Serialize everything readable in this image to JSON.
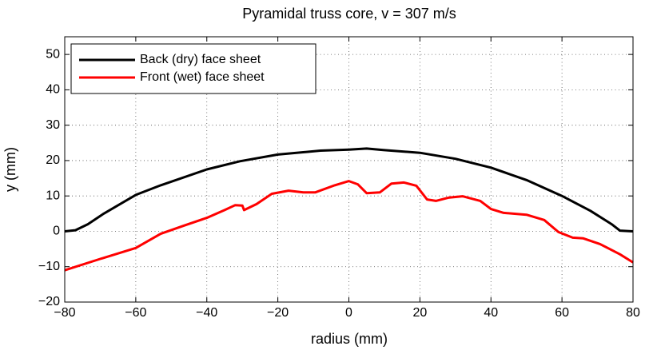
{
  "chart_data": {
    "type": "line",
    "title": "Pyramidal truss core, v = 307 m/s",
    "xlabel": "radius (mm)",
    "ylabel": "y (mm)",
    "xlim": [
      -80,
      80
    ],
    "xticks": [
      {
        "value": -80,
        "label": "−80"
      },
      {
        "value": -60,
        "label": "−60"
      },
      {
        "value": -40,
        "label": "−40"
      },
      {
        "value": -20,
        "label": "−20"
      },
      0,
      20,
      40,
      60,
      80
    ],
    "ylim": [
      -20,
      55
    ],
    "yticks": [
      {
        "value": -20,
        "label": "−20"
      },
      {
        "value": -10,
        "label": "−10"
      },
      0,
      10,
      20,
      30,
      40,
      50
    ],
    "grid": true,
    "legend": "upper left",
    "series": [
      {
        "name": "Back (dry) face sheet",
        "color": "#000000",
        "x": [
          -80,
          -77,
          -73.5,
          -69,
          -60,
          -53,
          -40,
          -30.7,
          -20,
          -8,
          0,
          5,
          9.7,
          20,
          30,
          40,
          50,
          60,
          68,
          74,
          76.3,
          80
        ],
        "values": [
          0,
          0.3,
          2,
          5,
          10.3,
          13,
          17.5,
          19.8,
          21.7,
          22.8,
          23.1,
          23.4,
          23,
          22.2,
          20.5,
          18,
          14.5,
          10,
          5.8,
          2,
          0.2,
          0
        ]
      },
      {
        "name": "Front (wet) face sheet",
        "color": "#ff0000",
        "x": [
          -80,
          -70,
          -60,
          -53,
          -46.5,
          -40,
          -35,
          -32,
          -30,
          -29.5,
          -26,
          -21.7,
          -17,
          -12.8,
          -9.5,
          -4,
          0,
          2.5,
          5,
          8.7,
          12,
          15.5,
          19,
          22,
          24.5,
          28,
          32,
          37,
          40,
          43.6,
          50,
          55,
          59,
          63,
          66,
          70.7,
          76.3,
          80
        ],
        "values": [
          -11,
          -7.8,
          -4.7,
          -0.7,
          1.6,
          3.8,
          6,
          7.4,
          7.3,
          6,
          7.7,
          10.6,
          11.5,
          11,
          11,
          13,
          14.2,
          13.3,
          10.8,
          11,
          13.5,
          13.8,
          12.9,
          9,
          8.6,
          9.5,
          9.9,
          8.6,
          6.3,
          5.2,
          4.7,
          3.2,
          -0.2,
          -1.8,
          -2,
          -3.6,
          -6.5,
          -8.8
        ]
      }
    ]
  }
}
